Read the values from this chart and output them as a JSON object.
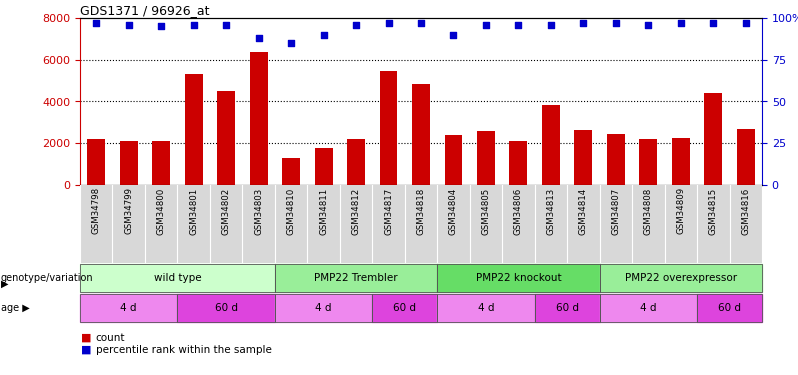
{
  "title": "GDS1371 / 96926_at",
  "samples": [
    "GSM34798",
    "GSM34799",
    "GSM34800",
    "GSM34801",
    "GSM34802",
    "GSM34803",
    "GSM34810",
    "GSM34811",
    "GSM34812",
    "GSM34817",
    "GSM34818",
    "GSM34804",
    "GSM34805",
    "GSM34806",
    "GSM34813",
    "GSM34814",
    "GSM34807",
    "GSM34808",
    "GSM34809",
    "GSM34815",
    "GSM34816"
  ],
  "counts": [
    2200,
    2100,
    2100,
    5300,
    4500,
    6350,
    1300,
    1750,
    2200,
    5450,
    4850,
    2400,
    2600,
    2100,
    3850,
    2650,
    2450,
    2200,
    2250,
    4400,
    2700
  ],
  "percentile_ranks": [
    97,
    96,
    95,
    96,
    96,
    88,
    85,
    90,
    96,
    97,
    97,
    90,
    96,
    96,
    96,
    97,
    97,
    96,
    97,
    97,
    97
  ],
  "bar_color": "#cc0000",
  "dot_color": "#0000cc",
  "ylim_left": [
    0,
    8000
  ],
  "ylim_right": [
    0,
    100
  ],
  "yticks_left": [
    0,
    2000,
    4000,
    6000,
    8000
  ],
  "yticks_right": [
    0,
    25,
    50,
    75,
    100
  ],
  "ytick_labels_right": [
    "0",
    "25",
    "50",
    "75",
    "100%"
  ],
  "genotype_groups": [
    {
      "label": "wild type",
      "start": 0,
      "end": 6,
      "color": "#ccffcc"
    },
    {
      "label": "PMP22 Trembler",
      "start": 6,
      "end": 11,
      "color": "#99ee99"
    },
    {
      "label": "PMP22 knockout",
      "start": 11,
      "end": 16,
      "color": "#66dd66"
    },
    {
      "label": "PMP22 overexpressor",
      "start": 16,
      "end": 21,
      "color": "#99ee99"
    }
  ],
  "age_groups": [
    {
      "label": "4 d",
      "start": 0,
      "end": 3,
      "color": "#ee88ee"
    },
    {
      "label": "60 d",
      "start": 3,
      "end": 6,
      "color": "#dd44dd"
    },
    {
      "label": "4 d",
      "start": 6,
      "end": 9,
      "color": "#ee88ee"
    },
    {
      "label": "60 d",
      "start": 9,
      "end": 11,
      "color": "#dd44dd"
    },
    {
      "label": "4 d",
      "start": 11,
      "end": 14,
      "color": "#ee88ee"
    },
    {
      "label": "60 d",
      "start": 14,
      "end": 16,
      "color": "#dd44dd"
    },
    {
      "label": "4 d",
      "start": 16,
      "end": 19,
      "color": "#ee88ee"
    },
    {
      "label": "60 d",
      "start": 19,
      "end": 21,
      "color": "#dd44dd"
    }
  ],
  "legend_count_color": "#cc0000",
  "legend_pct_color": "#0000cc",
  "axis_color_left": "#cc0000",
  "axis_color_right": "#0000cc",
  "fig_width": 7.98,
  "fig_height": 3.75,
  "fig_dpi": 100
}
